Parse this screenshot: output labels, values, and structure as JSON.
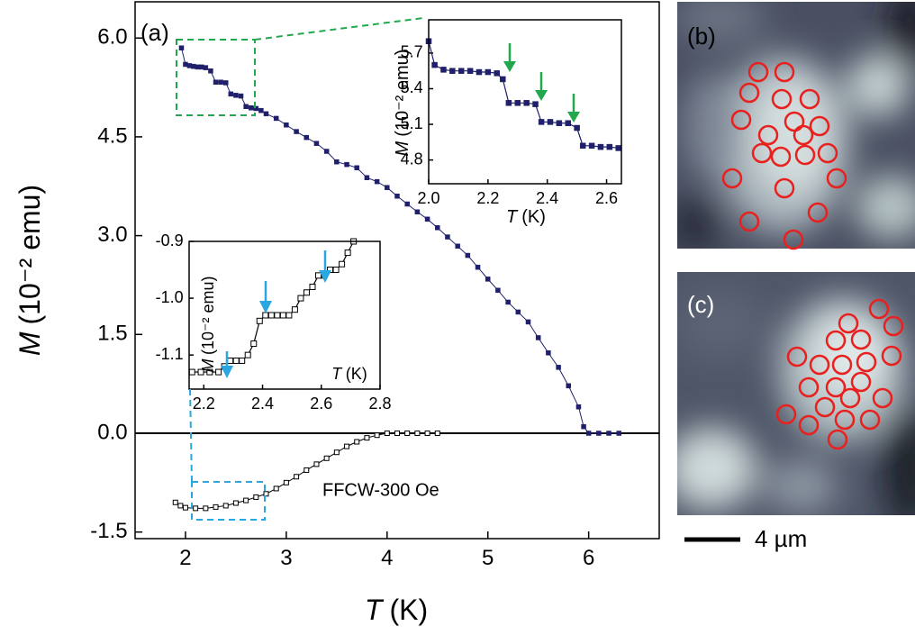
{
  "chart_data": [
    {
      "type": "line",
      "annotations": [
        "(a)",
        "FFCW-300 Oe"
      ],
      "xlabel": {
        "symbol": "T",
        "unit": "(K)"
      },
      "ylabel": {
        "symbol": "M",
        "unit": "(10⁻² emu)"
      },
      "xlim": [
        1.5,
        6.7
      ],
      "ylim": [
        -1.6,
        6.55
      ],
      "xticks": [
        2,
        3,
        4,
        5,
        6
      ],
      "yticks": [
        {
          "value": 6,
          "label": "6.0"
        },
        4.5,
        {
          "value": 3,
          "label": "3.0"
        },
        1.5,
        {
          "value": 0,
          "label": "0.0"
        },
        -1.5
      ],
      "zero_line": true,
      "series": [
        {
          "color": "#1f1f6b",
          "marker": "filled-square",
          "x": [
            1.96,
            2.0,
            2.04,
            2.08,
            2.12,
            2.16,
            2.2,
            2.25,
            2.3,
            2.35,
            2.4,
            2.45,
            2.5,
            2.55,
            2.6,
            2.65,
            2.7,
            2.75,
            2.8,
            2.9,
            3.0,
            3.1,
            3.2,
            3.3,
            3.4,
            3.5,
            3.6,
            3.7,
            3.8,
            3.9,
            4.0,
            4.1,
            4.2,
            4.3,
            4.4,
            4.5,
            4.6,
            4.7,
            4.8,
            4.9,
            5.0,
            5.1,
            5.2,
            5.3,
            5.4,
            5.5,
            5.6,
            5.7,
            5.8,
            5.9,
            5.95,
            6.0,
            6.1,
            6.2,
            6.3
          ],
          "values": [
            5.85,
            5.6,
            5.58,
            5.57,
            5.56,
            5.56,
            5.55,
            5.5,
            5.33,
            5.33,
            5.32,
            5.15,
            5.13,
            5.12,
            4.96,
            4.94,
            4.93,
            4.9,
            4.85,
            4.78,
            4.68,
            4.58,
            4.49,
            4.4,
            4.28,
            4.12,
            4.08,
            4.03,
            3.88,
            3.82,
            3.73,
            3.6,
            3.48,
            3.36,
            3.25,
            3.12,
            2.98,
            2.84,
            2.7,
            2.52,
            2.34,
            2.17,
            1.99,
            1.84,
            1.69,
            1.45,
            1.22,
            1.0,
            0.72,
            0.4,
            0.1,
            0.0,
            0.0,
            0.0,
            0.0
          ]
        },
        {
          "color": "#000000",
          "marker": "open-square",
          "x": [
            1.9,
            1.95,
            2.0,
            2.1,
            2.2,
            2.3,
            2.4,
            2.5,
            2.6,
            2.7,
            2.8,
            2.9,
            3.0,
            3.1,
            3.2,
            3.3,
            3.4,
            3.5,
            3.6,
            3.7,
            3.8,
            3.9,
            4.0,
            4.1,
            4.2,
            4.3,
            4.4,
            4.5
          ],
          "values": [
            -1.05,
            -1.1,
            -1.13,
            -1.14,
            -1.14,
            -1.12,
            -1.1,
            -1.06,
            -1.02,
            -0.97,
            -0.92,
            -0.84,
            -0.75,
            -0.66,
            -0.56,
            -0.47,
            -0.38,
            -0.29,
            -0.2,
            -0.13,
            -0.07,
            -0.03,
            0.0,
            0.0,
            0.0,
            0.0,
            0.0,
            0.0
          ]
        }
      ]
    },
    {
      "type": "line",
      "xlabel": {
        "symbol": "T",
        "unit": "(K)"
      },
      "ylabel": {
        "symbol": "M",
        "unit": "(10⁻² emu)"
      },
      "xlim": [
        2,
        2.65
      ],
      "ylim": [
        4.6,
        5.98
      ],
      "xticks": [
        {
          "value": 2,
          "label": "2.0"
        },
        2.2,
        2.4,
        2.6
      ],
      "yticks": [
        5.7,
        5.4,
        5.1,
        4.8
      ],
      "series": [
        {
          "color": "#1f1f6b",
          "marker": "filled-square",
          "x": [
            2.0,
            2.02,
            2.05,
            2.08,
            2.11,
            2.14,
            2.17,
            2.2,
            2.23,
            2.25,
            2.27,
            2.3,
            2.33,
            2.36,
            2.38,
            2.41,
            2.44,
            2.47,
            2.5,
            2.52,
            2.55,
            2.58,
            2.61,
            2.64
          ],
          "values": [
            5.8,
            5.6,
            5.56,
            5.55,
            5.55,
            5.55,
            5.54,
            5.54,
            5.53,
            5.48,
            5.28,
            5.28,
            5.28,
            5.27,
            5.12,
            5.12,
            5.11,
            5.11,
            5.07,
            4.92,
            4.92,
            4.91,
            4.91,
            4.9
          ]
        }
      ]
    },
    {
      "type": "line",
      "xlabel": {
        "symbol": "T",
        "unit": "(K)"
      },
      "ylabel": {
        "symbol": "M",
        "unit": "(10⁻² emu)"
      },
      "xlim": [
        2.15,
        2.8
      ],
      "ylim": [
        -1.16,
        -0.9
      ],
      "xticks": [
        2.2,
        2.4,
        2.6,
        2.8
      ],
      "yticks": [
        -0.9,
        {
          "value": -1,
          "label": "-1.0"
        },
        -1.1
      ],
      "series": [
        {
          "color": "#000000",
          "marker": "open-square",
          "x": [
            2.16,
            2.19,
            2.22,
            2.25,
            2.27,
            2.29,
            2.31,
            2.33,
            2.35,
            2.37,
            2.39,
            2.41,
            2.43,
            2.45,
            2.47,
            2.49,
            2.51,
            2.53,
            2.55,
            2.57,
            2.59,
            2.61,
            2.63,
            2.65,
            2.67,
            2.69,
            2.71
          ],
          "values": [
            -1.13,
            -1.13,
            -1.13,
            -1.13,
            -1.12,
            -1.11,
            -1.11,
            -1.11,
            -1.1,
            -1.08,
            -1.04,
            -1.03,
            -1.03,
            -1.03,
            -1.03,
            -1.03,
            -1.02,
            -1.0,
            -0.99,
            -0.98,
            -0.96,
            -0.96,
            -0.95,
            -0.95,
            -0.94,
            -0.92,
            -0.9
          ]
        }
      ]
    }
  ],
  "images": {
    "panels": [
      {
        "label": "(b)"
      },
      {
        "label": "(c)"
      }
    ],
    "scale_bar": "4 µm"
  }
}
